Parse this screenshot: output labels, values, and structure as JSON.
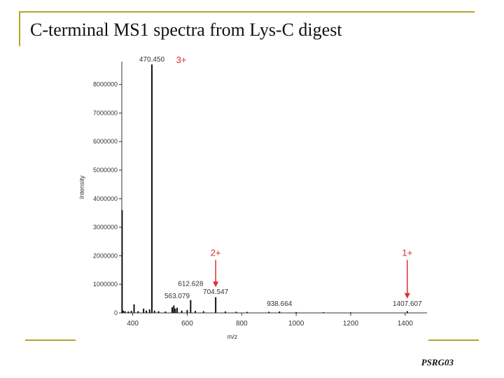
{
  "slide": {
    "title": "C-terminal MS1 spectra from Lys-C digest",
    "footer": "PSRG03",
    "accent_color": "#b8a22a"
  },
  "chart_data": {
    "type": "bar",
    "xlabel": "m/z",
    "ylabel": "Intensity",
    "xlim": [
      360,
      1480
    ],
    "ylim": [
      0,
      8800000
    ],
    "xticks": [
      400,
      600,
      800,
      1000,
      1200,
      1400
    ],
    "yticks": [
      0,
      1000000,
      2000000,
      3000000,
      4000000,
      5000000,
      6000000,
      7000000,
      8000000
    ],
    "peak_color": "#111111",
    "annotation_color": "#d9302c",
    "peaks": [
      {
        "mz": 361,
        "intensity": 3600000
      },
      {
        "mz": 365,
        "intensity": 80000
      },
      {
        "mz": 372,
        "intensity": 60000
      },
      {
        "mz": 384,
        "intensity": 50000
      },
      {
        "mz": 395,
        "intensity": 70000
      },
      {
        "mz": 405,
        "intensity": 300000
      },
      {
        "mz": 420,
        "intensity": 60000
      },
      {
        "mz": 440,
        "intensity": 150000
      },
      {
        "mz": 450,
        "intensity": 80000
      },
      {
        "mz": 462,
        "intensity": 120000
      },
      {
        "mz": 470.45,
        "intensity": 8700000
      },
      {
        "mz": 480,
        "intensity": 80000
      },
      {
        "mz": 495,
        "intensity": 60000
      },
      {
        "mz": 520,
        "intensity": 50000
      },
      {
        "mz": 545,
        "intensity": 200000
      },
      {
        "mz": 551,
        "intensity": 260000
      },
      {
        "mz": 556,
        "intensity": 150000
      },
      {
        "mz": 563.079,
        "intensity": 180000
      },
      {
        "mz": 580,
        "intensity": 80000
      },
      {
        "mz": 600,
        "intensity": 100000
      },
      {
        "mz": 612.628,
        "intensity": 450000
      },
      {
        "mz": 630,
        "intensity": 70000
      },
      {
        "mz": 660,
        "intensity": 60000
      },
      {
        "mz": 704.547,
        "intensity": 550000
      },
      {
        "mz": 740,
        "intensity": 50000
      },
      {
        "mz": 780,
        "intensity": 40000
      },
      {
        "mz": 820,
        "intensity": 35000
      },
      {
        "mz": 900,
        "intensity": 40000
      },
      {
        "mz": 938.664,
        "intensity": 50000
      },
      {
        "mz": 1000,
        "intensity": 30000
      },
      {
        "mz": 1100,
        "intensity": 25000
      },
      {
        "mz": 1200,
        "intensity": 20000
      },
      {
        "mz": 1407.607,
        "intensity": 60000
      }
    ],
    "peak_labels": [
      {
        "mz": 470.45,
        "text": "470.450",
        "at": 8700000
      },
      {
        "mz": 563.079,
        "text": "563.079",
        "at": 420000
      },
      {
        "mz": 612.628,
        "text": "612.628",
        "at": 850000
      },
      {
        "mz": 704.547,
        "text": "704.547",
        "at": 560000
      },
      {
        "mz": 938.664,
        "text": "938.664",
        "at": 150000
      },
      {
        "mz": 1407.607,
        "text": "1407.607",
        "at": 150000
      }
    ],
    "charge_annotations": [
      {
        "text": "3+",
        "mz": 470.45,
        "at": 8700000,
        "arrow": false
      },
      {
        "text": "2+",
        "mz": 704.547,
        "at": 2000000,
        "arrow": true,
        "arrow_to": 900000
      },
      {
        "text": "1+",
        "mz": 1407.607,
        "at": 2000000,
        "arrow": true,
        "arrow_to": 500000
      }
    ]
  }
}
